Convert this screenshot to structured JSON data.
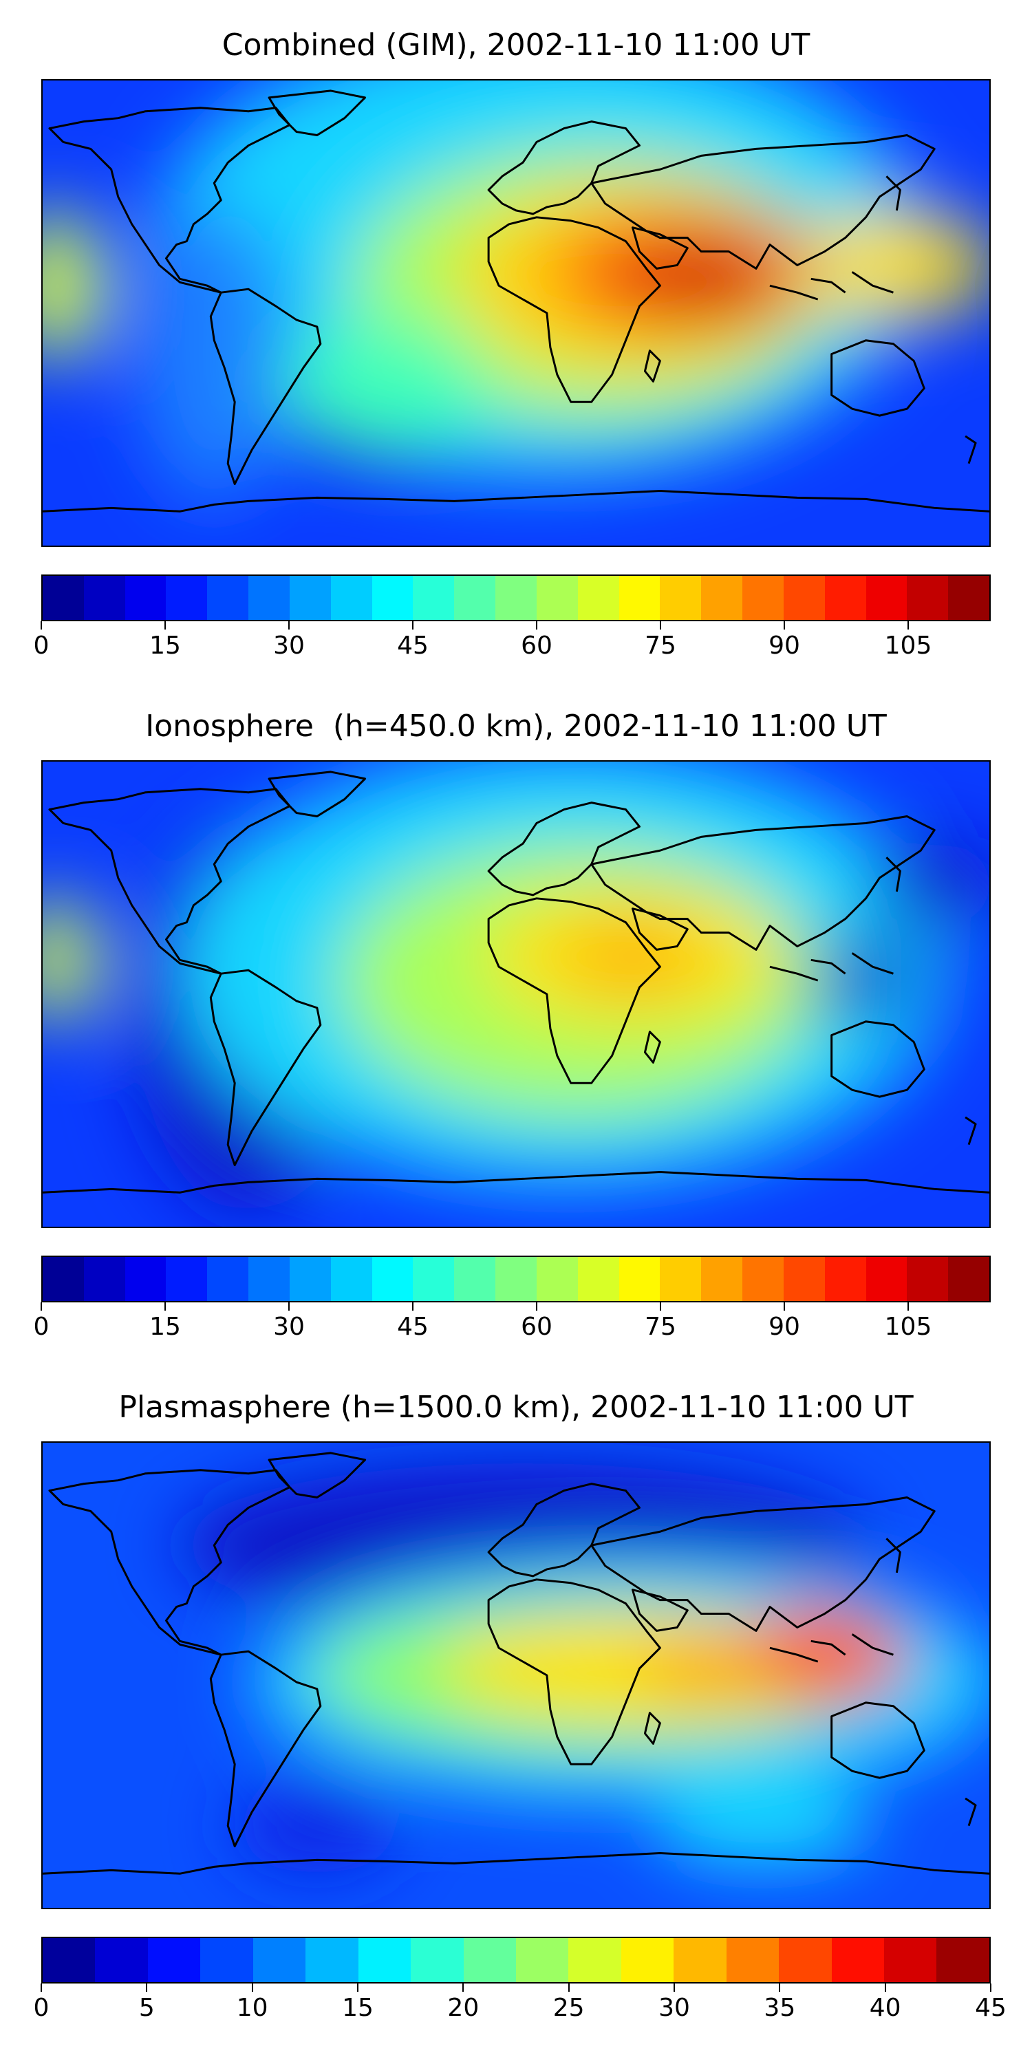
{
  "panels": [
    {
      "title": "Combined (GIM), 2002-11-10 11:00 UT",
      "colorbar": {
        "min": 0,
        "max": 115,
        "step": 5,
        "ticks": [
          "0",
          "15",
          "30",
          "45",
          "60",
          "75",
          "90",
          "105"
        ]
      }
    },
    {
      "title": "Ionosphere  (h=450.0 km), 2002-11-10 11:00 UT",
      "colorbar": {
        "min": 0,
        "max": 115,
        "step": 5,
        "ticks": [
          "0",
          "15",
          "30",
          "45",
          "60",
          "75",
          "90",
          "105"
        ]
      }
    },
    {
      "title": "Plasmasphere (h=1500.0 km), 2002-11-10 11:00 UT",
      "colorbar": {
        "min": 0,
        "max": 45,
        "step": 2.5,
        "ticks": [
          "0",
          "5",
          "10",
          "15",
          "20",
          "25",
          "30",
          "35",
          "40",
          "45"
        ]
      }
    }
  ],
  "colormap": "jet",
  "projection": "equirectangular, global, coastlines in black"
}
